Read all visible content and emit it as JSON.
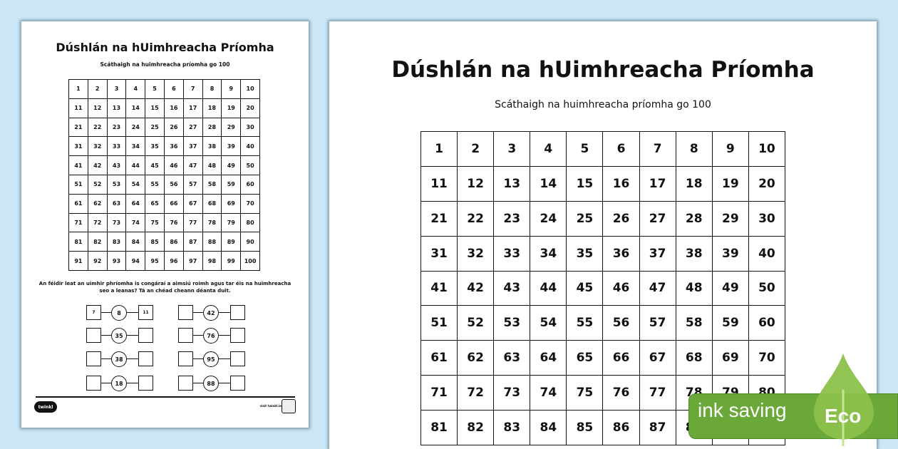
{
  "worksheet": {
    "title": "Dúshlán na hUimhreacha Príomha",
    "subtitle": "Scáthaigh na huimhreacha príomha go 100",
    "grid_numbers": [
      "1",
      "2",
      "3",
      "4",
      "5",
      "6",
      "7",
      "8",
      "9",
      "10",
      "11",
      "12",
      "13",
      "14",
      "15",
      "16",
      "17",
      "18",
      "19",
      "20",
      "21",
      "22",
      "23",
      "24",
      "25",
      "26",
      "27",
      "28",
      "29",
      "30",
      "31",
      "32",
      "33",
      "34",
      "35",
      "36",
      "37",
      "38",
      "39",
      "40",
      "41",
      "42",
      "43",
      "44",
      "45",
      "46",
      "47",
      "48",
      "49",
      "50",
      "51",
      "52",
      "53",
      "54",
      "55",
      "56",
      "57",
      "58",
      "59",
      "60",
      "61",
      "62",
      "63",
      "64",
      "65",
      "66",
      "67",
      "68",
      "69",
      "70",
      "71",
      "72",
      "73",
      "74",
      "75",
      "76",
      "77",
      "78",
      "79",
      "80",
      "81",
      "82",
      "83",
      "84",
      "85",
      "86",
      "87",
      "88",
      "89",
      "90",
      "91",
      "92",
      "93",
      "94",
      "95",
      "96",
      "97",
      "98",
      "99",
      "100"
    ],
    "instruction": "An féidir leat an uimhir phríomha is congáraí a aimsiú roimh agus tar éis na huimhreacha seo a leanas?  Tá an chéad cheann déanta duit.",
    "exercises": [
      {
        "before": "7",
        "number": "8",
        "after": "11"
      },
      {
        "before": "",
        "number": "42",
        "after": ""
      },
      {
        "before": "",
        "number": "35",
        "after": ""
      },
      {
        "before": "",
        "number": "76",
        "after": ""
      },
      {
        "before": "",
        "number": "38",
        "after": ""
      },
      {
        "before": "",
        "number": "95",
        "after": ""
      },
      {
        "before": "",
        "number": "18",
        "after": ""
      },
      {
        "before": "",
        "number": "88",
        "after": ""
      }
    ],
    "logo": "twinkl",
    "footer_link": "visit twinkl.ie"
  },
  "eco_badge": {
    "text": "ink saving",
    "label": "Eco",
    "color": "#6aa83a",
    "icon": "leaf-drop-icon"
  },
  "colors": {
    "background": "#cce8f6"
  }
}
